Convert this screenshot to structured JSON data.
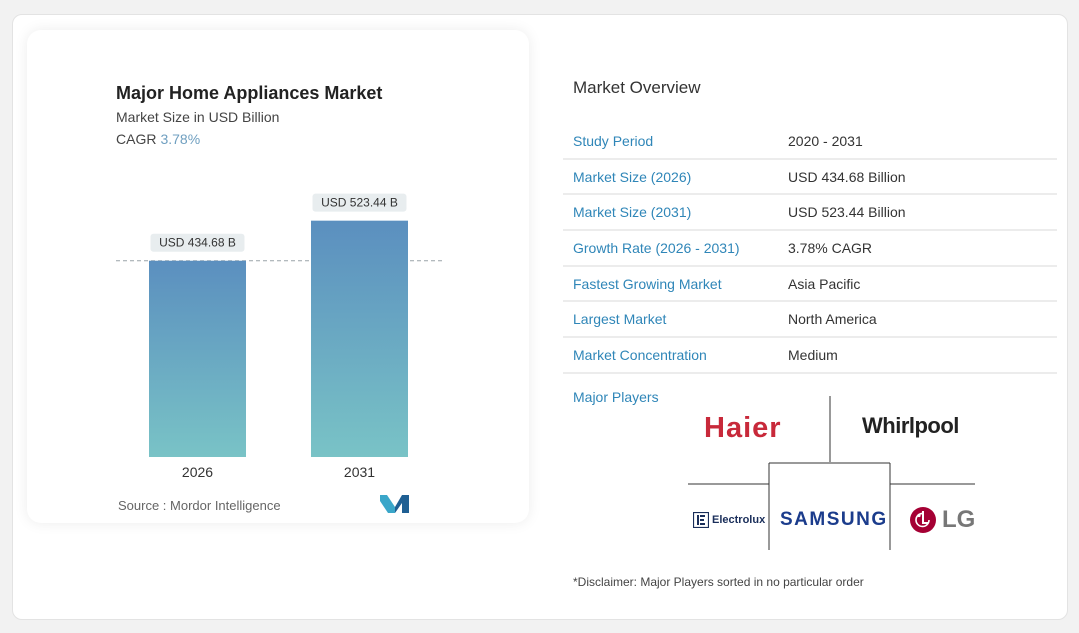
{
  "chart": {
    "title": "Major Home Appliances Market",
    "subtitle": "Market Size in USD Billion",
    "cagr_label": "CAGR",
    "cagr_value": "3.78%",
    "source": "Source :  Mordor Intelligence"
  },
  "chart_data": {
    "type": "bar",
    "title": "Major Home Appliances Market",
    "subtitle": "Market Size in USD Billion",
    "categories": [
      "2026",
      "2031"
    ],
    "values": [
      434.68,
      523.44
    ],
    "value_labels": [
      "USD 434.68 B",
      "USD 523.44 B"
    ],
    "ylim": [
      0,
      600
    ],
    "grid": false,
    "reference_line": 434.68,
    "colors": {
      "bar_top": "#5b8fbf",
      "bar_bottom": "#79c3c6"
    }
  },
  "overview": {
    "title": "Market Overview",
    "rows": [
      {
        "key": "Study Period",
        "value": "2020 - 2031"
      },
      {
        "key": "Market Size (2026)",
        "value": "USD 434.68 Billion"
      },
      {
        "key": "Market Size (2031)",
        "value": "USD 523.44 Billion"
      },
      {
        "key": "Growth Rate (2026 - 2031)",
        "value": "3.78% CAGR"
      },
      {
        "key": "Fastest Growing Market",
        "value": "Asia Pacific"
      },
      {
        "key": "Largest Market",
        "value": "North America"
      },
      {
        "key": "Market Concentration",
        "value": "Medium"
      }
    ],
    "players_label": "Major Players",
    "players": [
      "Haier",
      "Whirlpool",
      "Electrolux",
      "SAMSUNG",
      "LG"
    ],
    "disclaimer": "*Disclaimer: Major Players sorted in no particular order"
  },
  "colors": {
    "accent": "#2f86b8",
    "haier": "#c8293a",
    "samsung": "#1b3c8c",
    "lg": "#a50034"
  }
}
